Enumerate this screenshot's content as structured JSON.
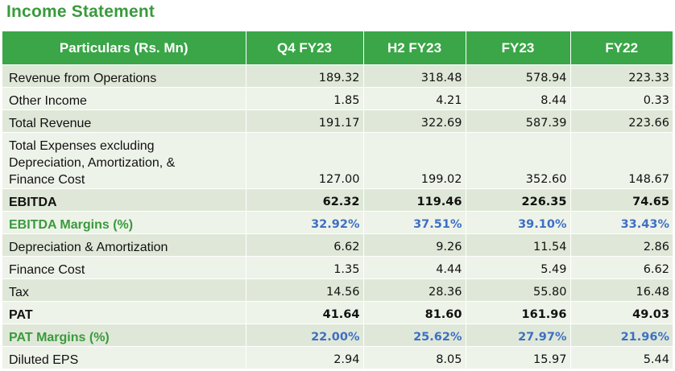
{
  "title": "Income Statement",
  "table": {
    "headers": [
      "Particulars (Rs. Mn)",
      "Q4 FY23",
      "H2 FY23",
      "FY23",
      "FY22"
    ],
    "rows": [
      {
        "label": "Revenue from Operations",
        "values": [
          "189.32",
          "318.48",
          "578.94",
          "223.33"
        ],
        "style": "normal"
      },
      {
        "label": "Other Income",
        "values": [
          "1.85",
          "4.21",
          "8.44",
          "0.33"
        ],
        "style": "normal"
      },
      {
        "label": "Total Revenue",
        "values": [
          "191.17",
          "322.69",
          "587.39",
          "223.66"
        ],
        "style": "normal"
      },
      {
        "label": "Total Expenses excluding\nDepreciation, Amortization, &\nFinance Cost",
        "values": [
          "127.00",
          "199.02",
          "352.60",
          "148.67"
        ],
        "style": "normal"
      },
      {
        "label": "EBITDA",
        "values": [
          "62.32",
          "119.46",
          "226.35",
          "74.65"
        ],
        "style": "bold"
      },
      {
        "label": "EBITDA Margins (%)",
        "values": [
          "32.92%",
          "37.51%",
          "39.10%",
          "33.43%"
        ],
        "style": "margin"
      },
      {
        "label": "Depreciation & Amortization",
        "values": [
          "6.62",
          "9.26",
          "11.54",
          "2.86"
        ],
        "style": "normal"
      },
      {
        "label": "Finance Cost",
        "values": [
          "1.35",
          "4.44",
          "5.49",
          "6.62"
        ],
        "style": "normal"
      },
      {
        "label": "Tax",
        "values": [
          "14.56",
          "28.36",
          "55.80",
          "16.48"
        ],
        "style": "normal"
      },
      {
        "label": "PAT",
        "values": [
          "41.64",
          "81.60",
          "161.96",
          "49.03"
        ],
        "style": "bold"
      },
      {
        "label": "PAT Margins (%)",
        "values": [
          "22.00%",
          "25.62%",
          "27.97%",
          "21.96%"
        ],
        "style": "margin"
      },
      {
        "label": "Diluted EPS",
        "values": [
          "2.94",
          "8.05",
          "15.97",
          "5.44"
        ],
        "style": "normal"
      }
    ]
  },
  "colors": {
    "title": "#3a9a3c",
    "header_bg": "#3aa647",
    "row_alt": "#dfe8d8",
    "row_plain": "#eef3ea",
    "margin_value": "#3e6fc4"
  }
}
